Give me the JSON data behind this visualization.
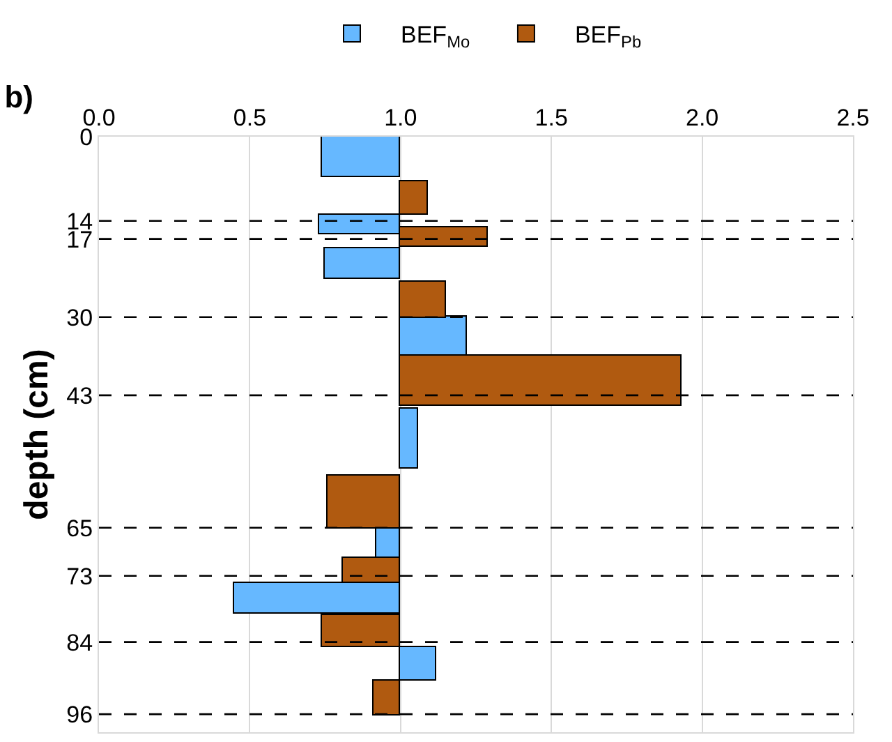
{
  "chart_data": {
    "type": "bar",
    "orientation": "horizontal",
    "title": "b)",
    "ylabel": "depth (cm)",
    "xlim": [
      0,
      2.5
    ],
    "xticks": [
      {
        "value": 0,
        "label": "0.0"
      },
      {
        "value": 0.5,
        "label": "0.5"
      },
      {
        "value": 1,
        "label": "1.0"
      },
      {
        "value": 1.5,
        "label": "1.5"
      },
      {
        "value": 2,
        "label": "2.0"
      },
      {
        "value": 2.5,
        "label": "2.5"
      }
    ],
    "ylim": [
      99,
      0
    ],
    "yticks": [
      0,
      14,
      17,
      30,
      43,
      65,
      73,
      84,
      96
    ],
    "grid": "x",
    "legend": "top",
    "series": [
      {
        "name": "BEF$_{Mo}$",
        "color": "#66b8ff",
        "x": [
          3.2,
          14.6,
          21.1,
          33.2,
          50.2,
          68.1,
          76.7,
          87.6
        ],
        "base": [
          1,
          1,
          1,
          1,
          1,
          1,
          1,
          1
        ],
        "values": [
          -0.26,
          -0.27,
          -0.25,
          0.22,
          0.06,
          -0.08,
          -0.55,
          0.12
        ]
      },
      {
        "name": "BEF$_{Pb}$",
        "color": "#b05a10",
        "x": [
          10.2,
          16.75,
          27.15,
          40.6,
          60.75,
          72.15,
          82.15,
          93.35
        ],
        "base": [
          1,
          1,
          1,
          1,
          1,
          1,
          1,
          1
        ],
        "values": [
          0.09,
          0.29,
          0.15,
          0.93,
          -0.24,
          -0.19,
          -0.26,
          -0.09
        ]
      }
    ],
    "ref_lines": [
      {
        "axis": "y",
        "value": 14,
        "color": "#000000",
        "line_style": "dashed"
      },
      {
        "axis": "y",
        "value": 17,
        "color": "#000000",
        "line_style": "dashed"
      },
      {
        "axis": "y",
        "value": 30,
        "color": "#000000",
        "line_style": "dashed"
      },
      {
        "axis": "y",
        "value": 43,
        "color": "#000000",
        "line_style": "dashed"
      },
      {
        "axis": "y",
        "value": 65,
        "color": "#000000",
        "line_style": "dashed"
      },
      {
        "axis": "y",
        "value": 73,
        "color": "#000000",
        "line_style": "dashed"
      },
      {
        "axis": "y",
        "value": 84,
        "color": "#000000",
        "line_style": "dashed"
      },
      {
        "axis": "y",
        "value": 96,
        "color": "#000000",
        "line_style": "dashed"
      }
    ]
  }
}
